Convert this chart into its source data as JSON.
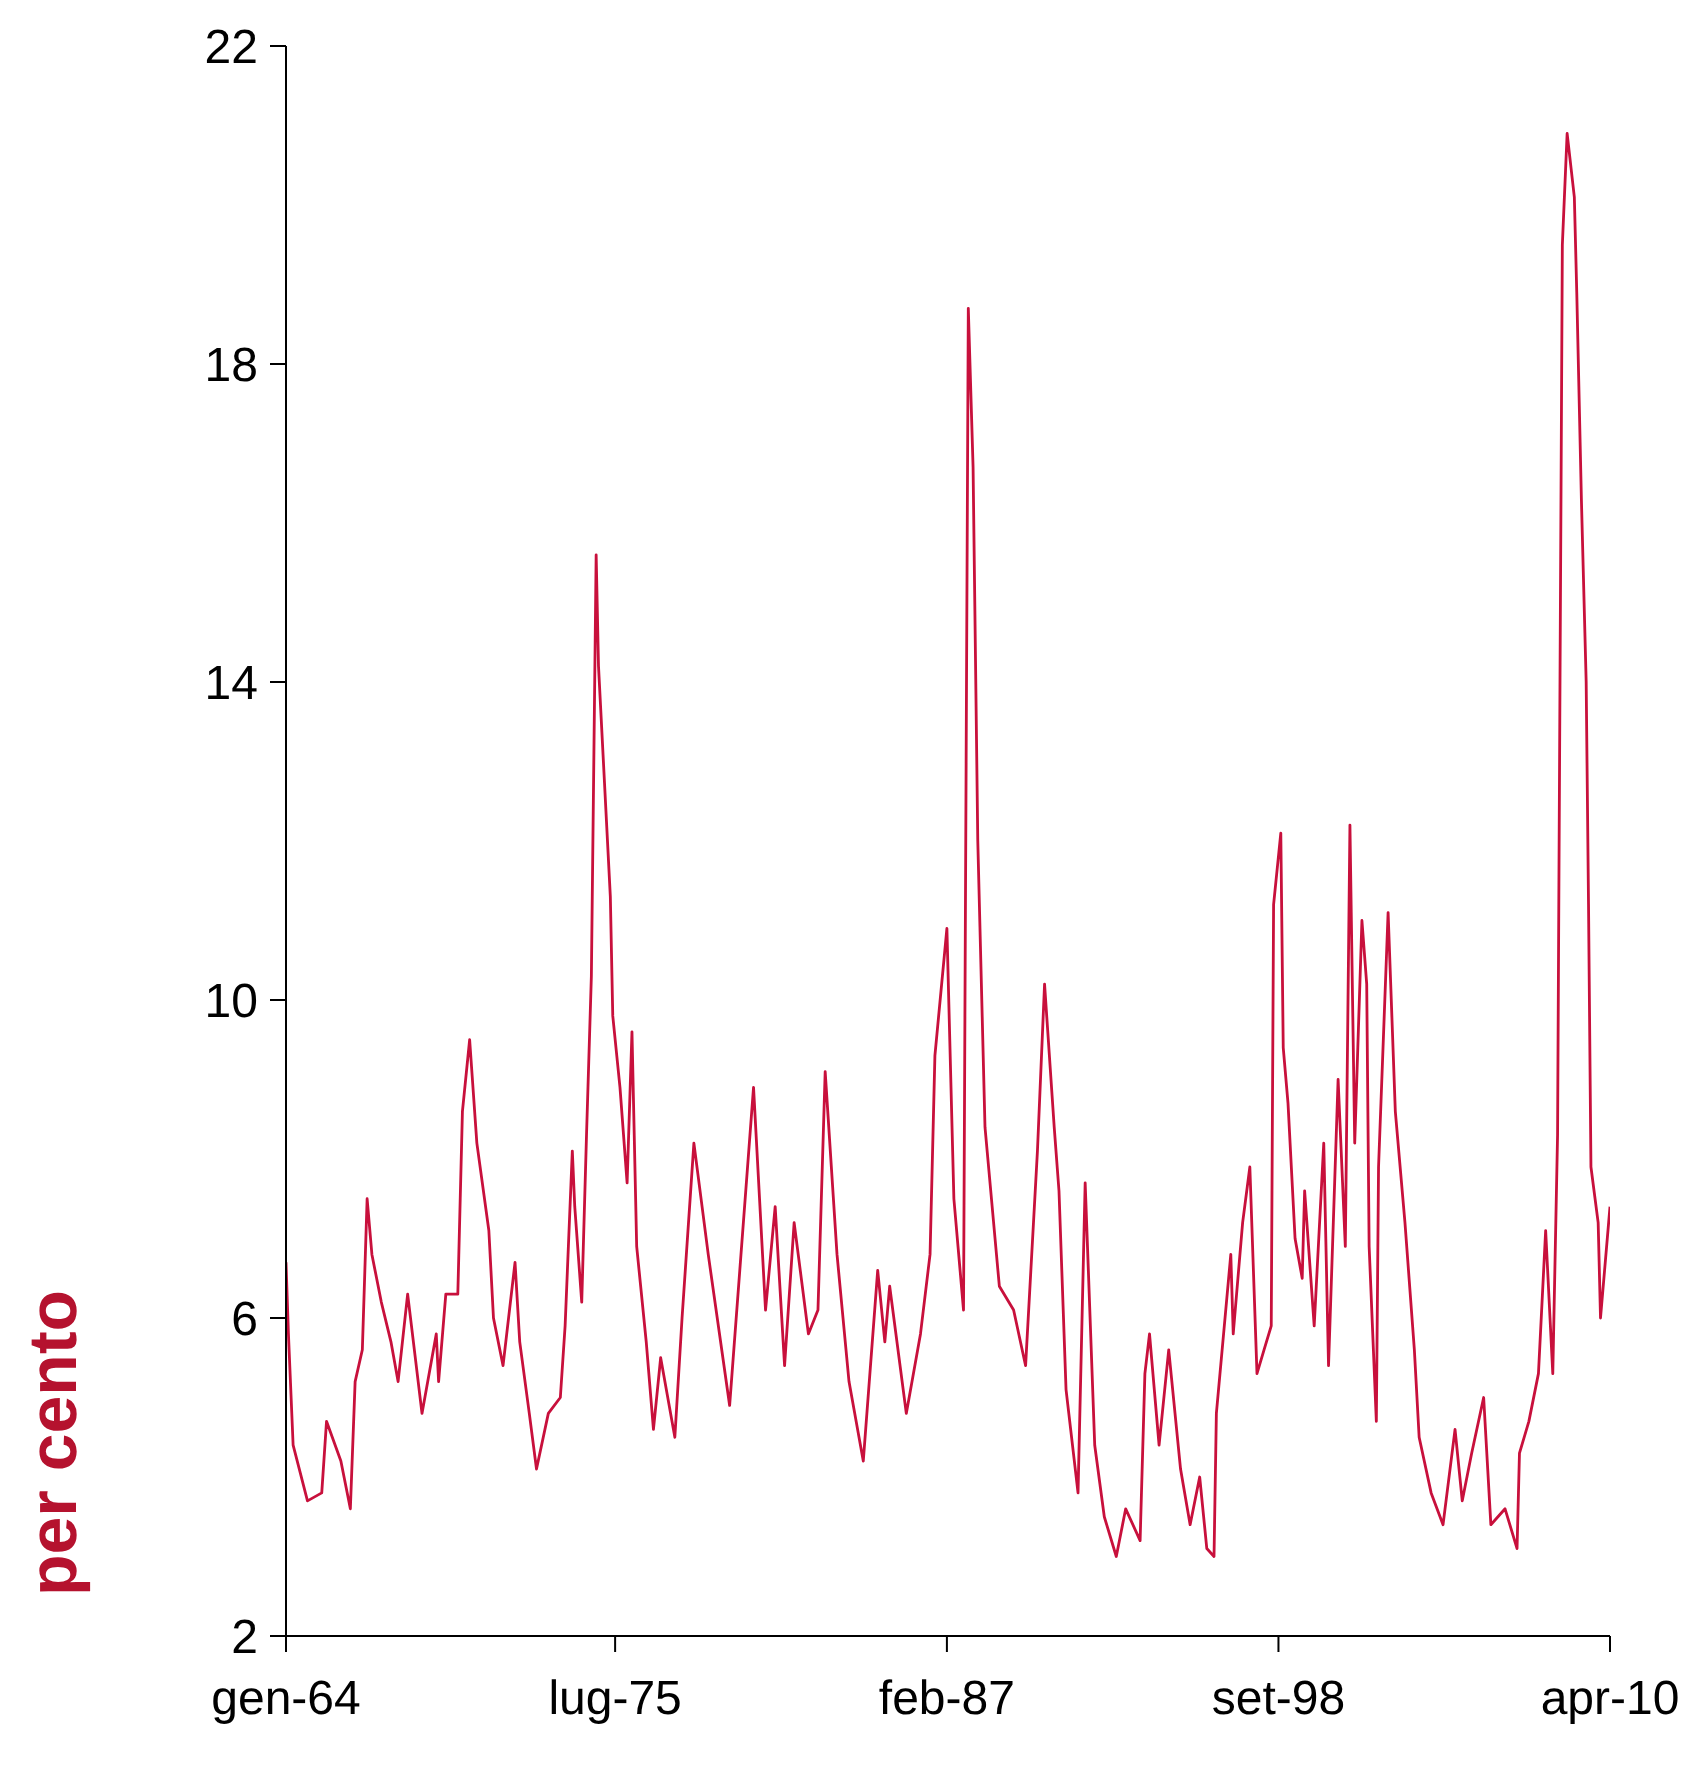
{
  "chart_data": {
    "type": "line",
    "ylabel": "per cento",
    "xlim": [
      "1964-01",
      "2010-04"
    ],
    "xticks": [
      {
        "value": "1964-01",
        "label": "gen-64"
      },
      {
        "value": "1975-07",
        "label": "lug-75"
      },
      {
        "value": "1987-02",
        "label": "feb-87"
      },
      {
        "value": "1998-09",
        "label": "set-98"
      },
      {
        "value": "2010-04",
        "label": "apr-10"
      }
    ],
    "ylim": [
      2,
      22
    ],
    "yticks": [
      2,
      6,
      10,
      14,
      18,
      22
    ],
    "x": [
      "1964-01",
      "1964-02",
      "1964-04",
      "1964-10",
      "1965-04",
      "1965-06",
      "1965-12",
      "1966-04",
      "1966-06",
      "1966-09",
      "1966-11",
      "1967-01",
      "1967-05",
      "1967-09",
      "1967-12",
      "1968-04",
      "1968-10",
      "1969-04",
      "1969-05",
      "1969-08",
      "1970-01",
      "1970-03",
      "1970-06",
      "1970-09",
      "1971-02",
      "1971-04",
      "1971-08",
      "1972-01",
      "1972-03",
      "1972-07",
      "1972-10",
      "1973-03",
      "1973-08",
      "1973-10",
      "1974-01",
      "1974-02",
      "1974-05",
      "1974-07",
      "1974-09",
      "1974-11",
      "1974-12",
      "1975-05",
      "1975-06",
      "1975-09",
      "1975-12",
      "1976-02",
      "1976-04",
      "1976-08",
      "1976-11",
      "1977-02",
      "1977-08",
      "1977-11",
      "1978-04",
      "1978-10",
      "1979-07",
      "1980-05",
      "1980-10",
      "1981-02",
      "1981-06",
      "1981-10",
      "1982-04",
      "1982-08",
      "1982-11",
      "1983-04",
      "1983-09",
      "1984-03",
      "1984-09",
      "1984-12",
      "1985-02",
      "1985-09",
      "1986-03",
      "1986-07",
      "1986-09",
      "1987-02",
      "1987-05",
      "1987-09",
      "1987-11",
      "1988-01",
      "1988-03",
      "1988-06",
      "1988-12",
      "1989-06",
      "1989-11",
      "1990-04",
      "1990-07",
      "1990-11",
      "1991-01",
      "1991-04",
      "1991-09",
      "1991-12",
      "1992-04",
      "1992-08",
      "1993-01",
      "1993-05",
      "1993-11",
      "1994-01",
      "1994-03",
      "1994-07",
      "1994-11",
      "1995-04",
      "1995-08",
      "1995-12",
      "1996-03",
      "1996-06",
      "1996-07",
      "1996-10",
      "1997-01",
      "1997-02",
      "1997-06",
      "1997-09",
      "1997-12",
      "1998-03",
      "1998-06",
      "1998-07",
      "1998-10",
      "1998-11",
      "1999-01",
      "1999-04",
      "1999-07",
      "1999-08",
      "1999-12",
      "2000-04",
      "2000-06",
      "2000-10",
      "2001-01",
      "2001-03",
      "2001-05",
      "2001-08",
      "2001-10",
      "2001-11",
      "2002-02",
      "2002-03",
      "2002-07",
      "2002-10",
      "2003-02",
      "2003-06",
      "2003-08",
      "2004-01",
      "2004-06",
      "2004-11",
      "2005-02",
      "2005-06",
      "2005-11",
      "2006-02",
      "2006-08",
      "2007-01",
      "2007-02",
      "2007-06",
      "2007-10",
      "2008-01",
      "2008-04",
      "2008-06",
      "2008-08",
      "2008-10",
      "2009-01",
      "2009-02",
      "2009-04",
      "2009-06",
      "2009-07",
      "2009-08",
      "2009-11",
      "2009-12",
      "2010-04"
    ],
    "series": [
      {
        "color": "#c8103c",
        "values": [
          6.7,
          5.8,
          4.4,
          3.7,
          3.8,
          4.7,
          4.2,
          3.6,
          5.2,
          5.6,
          7.5,
          6.8,
          6.2,
          5.7,
          5.2,
          6.3,
          4.8,
          5.8,
          5.2,
          6.3,
          6.3,
          8.6,
          9.5,
          8.2,
          7.1,
          6.0,
          5.4,
          6.7,
          5.7,
          4.8,
          4.1,
          4.8,
          5.0,
          5.9,
          8.1,
          7.4,
          6.2,
          8.3,
          10.3,
          15.6,
          14.2,
          11.3,
          9.8,
          8.9,
          7.7,
          9.6,
          6.9,
          5.7,
          4.6,
          5.5,
          4.5,
          6.0,
          8.2,
          6.8,
          4.9,
          8.9,
          6.1,
          7.4,
          5.4,
          7.2,
          5.8,
          6.1,
          9.1,
          6.8,
          5.2,
          4.2,
          6.6,
          5.7,
          6.4,
          4.8,
          5.8,
          6.8,
          9.3,
          10.9,
          7.5,
          6.1,
          18.7,
          16.7,
          12.0,
          8.4,
          6.4,
          6.1,
          5.4,
          8.1,
          10.2,
          8.4,
          7.6,
          5.1,
          3.8,
          7.7,
          4.4,
          3.5,
          3.0,
          3.6,
          3.2,
          5.3,
          5.8,
          4.4,
          5.6,
          4.1,
          3.4,
          4.0,
          3.1,
          3.0,
          4.8,
          5.8,
          6.8,
          5.8,
          7.2,
          7.9,
          5.3,
          5.6,
          5.9,
          11.2,
          12.1,
          9.4,
          8.7,
          7.0,
          6.5,
          7.6,
          5.9,
          8.2,
          5.4,
          9.0,
          6.9,
          12.2,
          8.2,
          11.0,
          10.2,
          6.9,
          4.7,
          7.9,
          11.1,
          8.6,
          7.2,
          5.6,
          4.5,
          3.8,
          3.4,
          4.6,
          3.7,
          4.3,
          5.0,
          3.4,
          3.6,
          3.1,
          4.3,
          4.7,
          5.3,
          7.1,
          5.3,
          8.3,
          19.5,
          20.9,
          20.1,
          18.9,
          16.3,
          14.0,
          11.2,
          7.9,
          7.2,
          6.0,
          7.4
        ]
      }
    ]
  }
}
